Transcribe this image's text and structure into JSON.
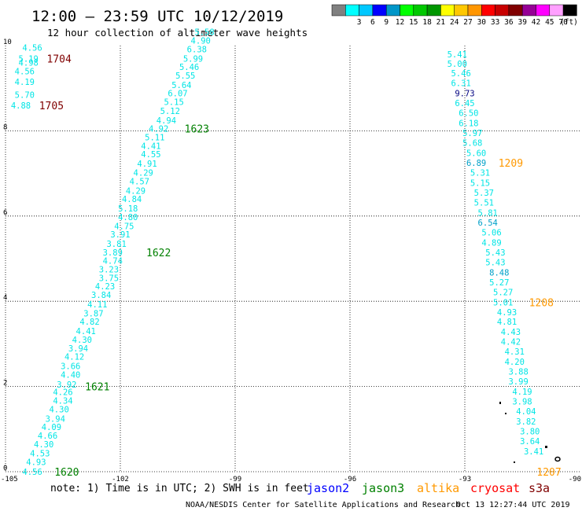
{
  "header": {
    "title": "12:00 – 23:59 UTC 10/12/2019",
    "subtitle": "12 hour collection of altimeter wave heights"
  },
  "colorbar": {
    "bins": [
      {
        "color": "#808080",
        "label": ""
      },
      {
        "color": "#00ffff",
        "label": "3"
      },
      {
        "color": "#00c8ff",
        "label": "6"
      },
      {
        "color": "#0000ff",
        "label": "9"
      },
      {
        "color": "#0096c8",
        "label": "12"
      },
      {
        "color": "#00ff00",
        "label": "15"
      },
      {
        "color": "#00c800",
        "label": "18"
      },
      {
        "color": "#009600",
        "label": "21"
      },
      {
        "color": "#ffff00",
        "label": "24"
      },
      {
        "color": "#ffc800",
        "label": "27"
      },
      {
        "color": "#ff9600",
        "label": "30"
      },
      {
        "color": "#ff0000",
        "label": "33"
      },
      {
        "color": "#c80000",
        "label": "36"
      },
      {
        "color": "#800000",
        "label": "39"
      },
      {
        "color": "#960096",
        "label": "42"
      },
      {
        "color": "#ff00ff",
        "label": "45"
      },
      {
        "color": "#ffa0ff",
        "label": "70"
      },
      {
        "color": "#000000",
        "label": ""
      }
    ],
    "unit": "(ft)"
  },
  "footer": {
    "note": "note: 1) Time is in UTC; 2) SWH is in feet",
    "credit": "NOAA/NESDIS Center for Satellite Applications and Research",
    "timestamp": "Oct 13 12:27:44 UTC 2019"
  },
  "legend": [
    {
      "name": "jason2",
      "color": "#0000ff"
    },
    {
      "name": "jason3",
      "color": "#008000"
    },
    {
      "name": "altika",
      "color": "#ff9900"
    },
    {
      "name": "cryosat",
      "color": "#ff0000"
    },
    {
      "name": "s3a",
      "color": "#800000"
    }
  ],
  "chart_data": {
    "type": "scatter",
    "title": "12:00 – 23:59 UTC 10/12/2019",
    "subtitle": "12 hour collection of altimeter wave heights",
    "xlim": [
      -105,
      -90
    ],
    "ylim": [
      0,
      10
    ],
    "x_ticks": [
      "-105",
      "-102",
      "-99",
      "-96",
      "-93",
      "-90"
    ],
    "y_ticks": [
      "0",
      "2",
      "4",
      "6",
      "8",
      "10"
    ],
    "grid": true,
    "colors": {
      "cyan": "#00e5e5",
      "dark_cyan": "#00a0c8",
      "navy": "#000080"
    },
    "tracks": [
      {
        "color": "cyan",
        "points": [
          {
            "x": -104.3,
            "y": 9.95,
            "v": "4.56"
          },
          {
            "x": -104.4,
            "y": 9.7,
            "v": "5.19"
          },
          {
            "x": -104.4,
            "y": 9.6,
            "v": "4.98"
          },
          {
            "x": -104.5,
            "y": 9.4,
            "v": "4.56"
          },
          {
            "x": -104.5,
            "y": 9.15,
            "v": "4.19"
          },
          {
            "x": -104.5,
            "y": 8.85,
            "v": "5.70"
          },
          {
            "x": -104.6,
            "y": 8.6,
            "v": "4.88"
          }
        ]
      },
      {
        "color": "cyan",
        "points": [
          {
            "x": -104.3,
            "y": 0.0,
            "v": "4.56"
          },
          {
            "x": -104.2,
            "y": 0.23,
            "v": "4.93"
          },
          {
            "x": -104.1,
            "y": 0.43,
            "v": "4.53"
          },
          {
            "x": -104.0,
            "y": 0.65,
            "v": "4.30"
          },
          {
            "x": -103.9,
            "y": 0.85,
            "v": "4.66"
          },
          {
            "x": -103.8,
            "y": 1.05,
            "v": "4.09"
          },
          {
            "x": -103.7,
            "y": 1.25,
            "v": "3.94"
          },
          {
            "x": -103.6,
            "y": 1.47,
            "v": "4.30"
          },
          {
            "x": -103.5,
            "y": 1.67,
            "v": "4.34"
          },
          {
            "x": -103.5,
            "y": 1.87,
            "v": "4.26"
          },
          {
            "x": -103.4,
            "y": 2.05,
            "v": "3.92"
          },
          {
            "x": -103.3,
            "y": 2.28,
            "v": "4.40"
          },
          {
            "x": -103.3,
            "y": 2.48,
            "v": "3.66"
          },
          {
            "x": -103.2,
            "y": 2.7,
            "v": "4.12"
          },
          {
            "x": -103.1,
            "y": 2.9,
            "v": "3.94"
          },
          {
            "x": -103.0,
            "y": 3.1,
            "v": "4.30"
          },
          {
            "x": -102.9,
            "y": 3.3,
            "v": "4.41"
          },
          {
            "x": -102.8,
            "y": 3.52,
            "v": "4.82"
          },
          {
            "x": -102.7,
            "y": 3.72,
            "v": "3.87"
          },
          {
            "x": -102.6,
            "y": 3.93,
            "v": "4.11"
          },
          {
            "x": -102.5,
            "y": 4.15,
            "v": "3.84"
          },
          {
            "x": -102.4,
            "y": 4.35,
            "v": "4.23"
          },
          {
            "x": -102.3,
            "y": 4.55,
            "v": "3.75"
          },
          {
            "x": -102.3,
            "y": 4.75,
            "v": "3.23"
          },
          {
            "x": -102.2,
            "y": 4.95,
            "v": "4.74"
          },
          {
            "x": -102.2,
            "y": 5.15,
            "v": "3.89"
          },
          {
            "x": -102.1,
            "y": 5.35,
            "v": "3.81"
          },
          {
            "x": -102.0,
            "y": 5.57,
            "v": "3.91"
          },
          {
            "x": -101.9,
            "y": 5.77,
            "v": "4.75"
          },
          {
            "x": -101.8,
            "y": 5.98,
            "v": "4.80"
          },
          {
            "x": -101.8,
            "y": 6.18,
            "v": "5.18"
          },
          {
            "x": -101.7,
            "y": 6.4,
            "v": "4.84"
          },
          {
            "x": -101.6,
            "y": 6.6,
            "v": "4.29"
          },
          {
            "x": -101.5,
            "y": 6.82,
            "v": "4.57"
          },
          {
            "x": -101.4,
            "y": 7.02,
            "v": "4.29"
          },
          {
            "x": -101.3,
            "y": 7.23,
            "v": "4.91"
          },
          {
            "x": -101.2,
            "y": 7.45,
            "v": "4.55"
          },
          {
            "x": -101.2,
            "y": 7.65,
            "v": "4.41"
          },
          {
            "x": -101.1,
            "y": 7.85,
            "v": "5.11"
          },
          {
            "x": -101.0,
            "y": 8.05,
            "v": "4.92"
          },
          {
            "x": -100.8,
            "y": 8.25,
            "v": "4.94"
          },
          {
            "x": -100.7,
            "y": 8.47,
            "v": "5.12"
          },
          {
            "x": -100.6,
            "y": 8.68,
            "v": "5.15"
          },
          {
            "x": -100.5,
            "y": 8.88,
            "v": "6.07"
          },
          {
            "x": -100.4,
            "y": 9.08,
            "v": "5.64"
          },
          {
            "x": -100.3,
            "y": 9.3,
            "v": "5.55"
          },
          {
            "x": -100.2,
            "y": 9.5,
            "v": "5.46"
          },
          {
            "x": -100.1,
            "y": 9.7,
            "v": "5.99"
          },
          {
            "x": -100.0,
            "y": 9.92,
            "v": "6.38"
          },
          {
            "x": -99.9,
            "y": 10.12,
            "v": "4.90"
          },
          {
            "x": -99.8,
            "y": 10.32,
            "v": "5.58"
          }
        ]
      },
      {
        "color": "cyan",
        "points": [
          {
            "x": -93.2,
            "y": 9.8,
            "v": "5.41"
          },
          {
            "x": -93.2,
            "y": 9.58,
            "v": "5.00"
          },
          {
            "x": -93.1,
            "y": 9.35,
            "v": "5.46"
          },
          {
            "x": -93.1,
            "y": 9.12,
            "v": "6.31"
          },
          {
            "x": -93.0,
            "y": 8.88,
            "v": "9.73",
            "color": "navy"
          },
          {
            "x": -93.0,
            "y": 8.65,
            "v": "6.45"
          },
          {
            "x": -92.9,
            "y": 8.42,
            "v": "6.50"
          },
          {
            "x": -92.9,
            "y": 8.18,
            "v": "6.18"
          },
          {
            "x": -92.8,
            "y": 7.95,
            "v": "5.97"
          },
          {
            "x": -92.8,
            "y": 7.72,
            "v": "5.68"
          },
          {
            "x": -92.7,
            "y": 7.48,
            "v": "5.60"
          },
          {
            "x": -92.7,
            "y": 7.25,
            "v": "6.89",
            "color": "dark_cyan"
          },
          {
            "x": -92.6,
            "y": 7.02,
            "v": "5.31"
          },
          {
            "x": -92.6,
            "y": 6.78,
            "v": "5.15"
          },
          {
            "x": -92.5,
            "y": 6.55,
            "v": "5.37"
          },
          {
            "x": -92.5,
            "y": 6.32,
            "v": "5.51"
          },
          {
            "x": -92.4,
            "y": 6.08,
            "v": "5.81"
          },
          {
            "x": -92.4,
            "y": 5.85,
            "v": "6.54",
            "color": "dark_cyan"
          },
          {
            "x": -92.3,
            "y": 5.62,
            "v": "5.06"
          },
          {
            "x": -92.3,
            "y": 5.38,
            "v": "4.89"
          },
          {
            "x": -92.2,
            "y": 5.15,
            "v": "5.43"
          },
          {
            "x": -92.2,
            "y": 4.92,
            "v": "5.43"
          },
          {
            "x": -92.1,
            "y": 4.68,
            "v": "8.48",
            "color": "dark_cyan"
          },
          {
            "x": -92.1,
            "y": 4.45,
            "v": "5.27"
          },
          {
            "x": -92.0,
            "y": 4.22,
            "v": "5.27"
          },
          {
            "x": -92.0,
            "y": 3.98,
            "v": "5.01"
          },
          {
            "x": -91.9,
            "y": 3.75,
            "v": "4.93"
          },
          {
            "x": -91.9,
            "y": 3.52,
            "v": "4.81"
          },
          {
            "x": -91.8,
            "y": 3.28,
            "v": "4.43"
          },
          {
            "x": -91.8,
            "y": 3.05,
            "v": "4.42"
          },
          {
            "x": -91.7,
            "y": 2.82,
            "v": "4.31"
          },
          {
            "x": -91.7,
            "y": 2.58,
            "v": "4.20"
          },
          {
            "x": -91.6,
            "y": 2.35,
            "v": "3.88"
          },
          {
            "x": -91.6,
            "y": 2.12,
            "v": "3.99"
          },
          {
            "x": -91.5,
            "y": 1.88,
            "v": "4.19"
          },
          {
            "x": -91.5,
            "y": 1.65,
            "v": "3.98"
          },
          {
            "x": -91.4,
            "y": 1.42,
            "v": "4.04"
          },
          {
            "x": -91.4,
            "y": 1.18,
            "v": "3.82"
          },
          {
            "x": -91.3,
            "y": 0.95,
            "v": "3.80"
          },
          {
            "x": -91.3,
            "y": 0.72,
            "v": "3.64"
          },
          {
            "x": -91.2,
            "y": 0.48,
            "v": "3.41"
          }
        ]
      }
    ],
    "time_labels": [
      {
        "x": -103.6,
        "y": 9.7,
        "text": "1704",
        "color": "#800000"
      },
      {
        "x": -103.8,
        "y": 8.6,
        "text": "1705",
        "color": "#800000"
      },
      {
        "x": -100.0,
        "y": 8.05,
        "text": "1623",
        "color": "#008000"
      },
      {
        "x": -101.0,
        "y": 5.15,
        "text": "1622",
        "color": "#008000"
      },
      {
        "x": -102.6,
        "y": 2.0,
        "text": "1621",
        "color": "#008000"
      },
      {
        "x": -103.4,
        "y": 0.0,
        "text": "1620",
        "color": "#008000"
      },
      {
        "x": -91.8,
        "y": 7.25,
        "text": "1209",
        "color": "#ff9900"
      },
      {
        "x": -91.0,
        "y": 3.98,
        "text": "1208",
        "color": "#ff9900"
      },
      {
        "x": -90.8,
        "y": 0.0,
        "text": "1207",
        "color": "#ff9900"
      }
    ]
  }
}
